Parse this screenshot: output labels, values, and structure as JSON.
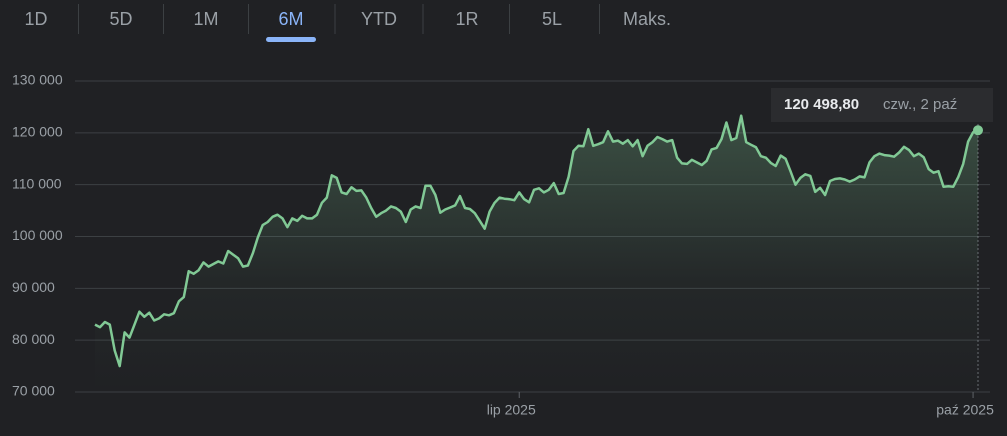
{
  "tabs": [
    "1D",
    "5D",
    "1M",
    "6M",
    "YTD",
    "1R",
    "5L",
    "Maks."
  ],
  "selected_tab": 3,
  "chart_data": {
    "type": "line",
    "color": "#81c995",
    "categories": [
      null,
      null,
      null,
      null,
      null,
      null,
      null,
      null,
      null,
      null,
      null,
      null,
      null,
      null,
      null,
      null,
      null,
      null,
      null,
      null,
      null,
      null,
      null,
      null,
      null,
      null,
      null,
      null,
      null,
      null,
      null,
      null,
      null,
      null,
      null,
      null,
      null,
      null,
      null,
      null,
      null,
      null,
      null,
      null,
      null,
      null,
      null,
      null,
      null,
      null,
      null,
      null,
      null,
      null,
      null,
      null,
      null,
      null,
      null,
      null,
      null,
      null,
      null,
      null,
      null,
      null,
      null,
      null,
      null,
      null,
      null,
      null,
      null,
      null,
      null,
      null,
      null,
      null,
      null,
      null,
      null,
      null,
      null,
      null,
      null,
      null,
      "lip 2025",
      null,
      null,
      null,
      null,
      null,
      null,
      null,
      null,
      null,
      null,
      null,
      null,
      null,
      null,
      null,
      null,
      null,
      null,
      null,
      null,
      null,
      null,
      null,
      null,
      null,
      null,
      null,
      null,
      null,
      null,
      null,
      null,
      null,
      null,
      null,
      null,
      null,
      null,
      null,
      null,
      null,
      null,
      null,
      null,
      null,
      null,
      null,
      null,
      null,
      null,
      null,
      null,
      null,
      null,
      null,
      null,
      null,
      null,
      null,
      null,
      null,
      null,
      null,
      null,
      null,
      null,
      null,
      null,
      null,
      null,
      null,
      null,
      null,
      null,
      null,
      null,
      null,
      null,
      null,
      null,
      null,
      null,
      null,
      null,
      null,
      null,
      null,
      null,
      null,
      null,
      null,
      "paź 2025",
      null
    ],
    "values": [
      83000,
      82500,
      83500,
      83000,
      78000,
      75000,
      81500,
      80500,
      83000,
      85500,
      84500,
      85300,
      83800,
      84200,
      85000,
      84800,
      85200,
      87500,
      88300,
      93300,
      92800,
      93500,
      95000,
      94200,
      94700,
      95200,
      94800,
      97200,
      96500,
      95800,
      94200,
      94400,
      96800,
      99800,
      102200,
      102800,
      103800,
      104200,
      103500,
      101800,
      103500,
      103000,
      104000,
      103500,
      103500,
      104200,
      106500,
      107500,
      111800,
      111300,
      108500,
      108200,
      109500,
      108800,
      108900,
      107500,
      105500,
      103800,
      104500,
      105000,
      105800,
      105500,
      104800,
      102800,
      105200,
      105800,
      105500,
      109800,
      109800,
      108000,
      104600,
      105200,
      105600,
      106000,
      107800,
      105500,
      105300,
      104500,
      103000,
      101500,
      104800,
      106500,
      107500,
      107300,
      107200,
      107000,
      108500,
      107200,
      106600,
      109000,
      109300,
      108500,
      109000,
      110300,
      108200,
      108400,
      111500,
      116500,
      117500,
      117400,
      120700,
      117500,
      117800,
      118200,
      120300,
      118300,
      118500,
      117900,
      118600,
      117400,
      118600,
      115500,
      117500,
      118200,
      119200,
      118800,
      118300,
      118600,
      115200,
      114100,
      114000,
      114800,
      114300,
      113800,
      114600,
      116800,
      117100,
      118800,
      122000,
      118600,
      119000,
      123300,
      118200,
      117700,
      117200,
      115500,
      115200,
      114200,
      113600,
      115600,
      115000,
      112600,
      110000,
      111300,
      112000,
      111700,
      108600,
      109400,
      108000,
      110700,
      111100,
      111200,
      111000,
      110600,
      111000,
      111600,
      111400,
      114300,
      115500,
      116000,
      115700,
      115600,
      115400,
      116200,
      117300,
      116700,
      115500,
      116000,
      115300,
      113000,
      112300,
      112600,
      109600,
      109700,
      109600,
      111500,
      114000,
      118300,
      120100,
      120498.8
    ],
    "ylim": [
      70000,
      130000
    ],
    "yticks": [
      {
        "value": 70000,
        "label": "70 000"
      },
      {
        "value": 80000,
        "label": "80 000"
      },
      {
        "value": 90000,
        "label": "90 000"
      },
      {
        "value": 100000,
        "label": "100 000"
      },
      {
        "value": 110000,
        "label": "110 000"
      },
      {
        "value": 120000,
        "label": "120 000"
      },
      {
        "value": 130000,
        "label": "130 000"
      }
    ],
    "grid": true,
    "tooltip": {
      "value": 120498.8,
      "label": "120 498,80",
      "date": "czw., 2 paź"
    }
  }
}
